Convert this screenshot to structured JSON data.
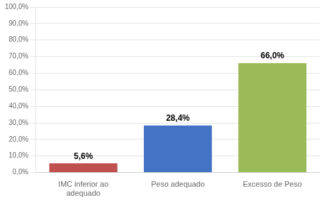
{
  "chart_data": {
    "type": "bar",
    "categories": [
      "IMC inferior ao\nadequado",
      "Peso adequado",
      "Excesso de Peso"
    ],
    "values": [
      5.6,
      28.4,
      66.0
    ],
    "value_labels": [
      "5,6%",
      "28,4%",
      "66,0%"
    ],
    "data_labels": true,
    "colors": [
      "#c0504d",
      "#4472c4",
      "#9bbb59"
    ],
    "ylim": [
      0,
      100
    ],
    "yticks": [
      {
        "value": 0,
        "label": "0,0%"
      },
      {
        "value": 10,
        "label": "10,0%"
      },
      {
        "value": 20,
        "label": "20,0%"
      },
      {
        "value": 30,
        "label": "30,0%"
      },
      {
        "value": 40,
        "label": "40,0%"
      },
      {
        "value": 50,
        "label": "50,0%"
      },
      {
        "value": 60,
        "label": "60,0%"
      },
      {
        "value": 70,
        "label": "70,0%"
      },
      {
        "value": 80,
        "label": "80,0%"
      },
      {
        "value": 90,
        "label": "90,0%"
      },
      {
        "value": 100,
        "label": "100,0%"
      }
    ],
    "grid": true
  }
}
